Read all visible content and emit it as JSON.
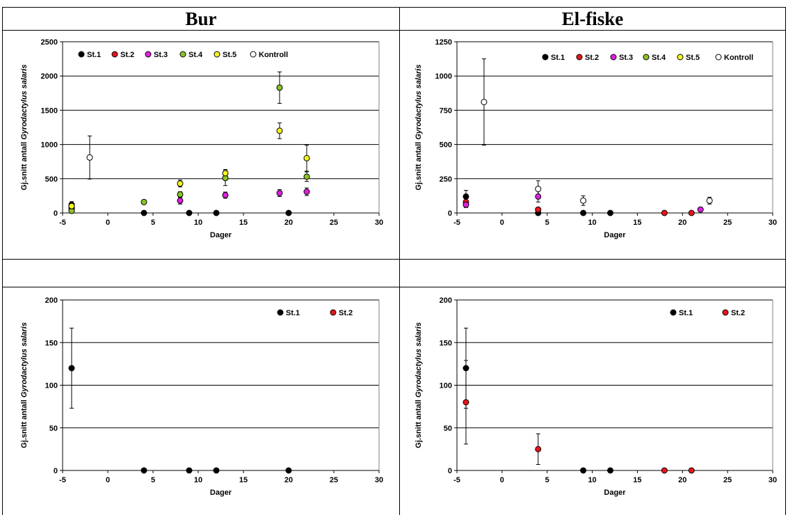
{
  "headers": {
    "left": "Bur",
    "right": "El-fiske"
  },
  "colors": {
    "St.1": "#000000",
    "St.2": "#e8141b",
    "St.3": "#e020e0",
    "St.4": "#8ac424",
    "St.5": "#f5f51e",
    "Kontroll": "#ffffff"
  },
  "chart_data": [
    {
      "type": "scatter",
      "panel": "top-left",
      "xlabel": "Dager",
      "ylabel_prefix": "Gj.snitt antall ",
      "ylabel_italic": "Gyrodactylus salaris",
      "xlim": [
        -5,
        30
      ],
      "ylim": [
        0,
        2500
      ],
      "xticks": [
        -5,
        0,
        5,
        10,
        15,
        20,
        25,
        30
      ],
      "yticks": [
        0,
        500,
        1000,
        1500,
        2000,
        2500
      ],
      "gridlines": true,
      "legend_position": "top",
      "series": [
        {
          "name": "St.1",
          "points": [
            {
              "x": -4,
              "y": 120,
              "err": 45
            },
            {
              "x": 4,
              "y": 0
            },
            {
              "x": 9,
              "y": 0
            },
            {
              "x": 12,
              "y": 0
            },
            {
              "x": 20,
              "y": 0
            }
          ]
        },
        {
          "name": "St.2",
          "points": [
            {
              "x": -4,
              "y": 80,
              "err": 40
            }
          ]
        },
        {
          "name": "St.3",
          "points": [
            {
              "x": -4,
              "y": 60,
              "err": 30
            },
            {
              "x": 8,
              "y": 180,
              "err": 50
            },
            {
              "x": 13,
              "y": 260,
              "err": 45
            },
            {
              "x": 19,
              "y": 290,
              "err": 50
            },
            {
              "x": 22,
              "y": 310,
              "err": 55
            }
          ]
        },
        {
          "name": "St.4",
          "points": [
            {
              "x": -4,
              "y": 30,
              "err": 20
            },
            {
              "x": 4,
              "y": 160,
              "err": 30
            },
            {
              "x": 8,
              "y": 270,
              "err": 40
            },
            {
              "x": 13,
              "y": 510,
              "err": 110
            },
            {
              "x": 19,
              "y": 1830,
              "err": 230
            },
            {
              "x": 22,
              "y": 530,
              "err": 70
            }
          ]
        },
        {
          "name": "St.5",
          "points": [
            {
              "x": -4,
              "y": 100,
              "err": 40
            },
            {
              "x": 8,
              "y": 430,
              "err": 50
            },
            {
              "x": 13,
              "y": 580,
              "err": 55
            },
            {
              "x": 19,
              "y": 1200,
              "err": 115
            },
            {
              "x": 22,
              "y": 800,
              "err": 190
            }
          ]
        },
        {
          "name": "Kontroll",
          "points": [
            {
              "x": -2,
              "y": 810,
              "err": 315
            }
          ]
        }
      ]
    },
    {
      "type": "scatter",
      "panel": "top-right",
      "xlabel": "Dager",
      "ylabel_prefix": "Gj.snitt antall ",
      "ylabel_italic": "Gyrodactylus salaris",
      "xlim": [
        -5,
        30
      ],
      "ylim": [
        0,
        1250
      ],
      "xticks": [
        -5,
        0,
        5,
        10,
        15,
        20,
        25,
        30
      ],
      "yticks": [
        0,
        250,
        500,
        750,
        1000,
        1250
      ],
      "gridlines": true,
      "legend_position": "top",
      "series": [
        {
          "name": "St.1",
          "points": [
            {
              "x": -4,
              "y": 120,
              "err": 45
            },
            {
              "x": 4,
              "y": 0
            },
            {
              "x": 9,
              "y": 0
            },
            {
              "x": 12,
              "y": 0
            }
          ]
        },
        {
          "name": "St.2",
          "points": [
            {
              "x": -4,
              "y": 80,
              "err": 40
            },
            {
              "x": 4,
              "y": 25,
              "err": 15
            },
            {
              "x": 18,
              "y": 0
            },
            {
              "x": 21,
              "y": 0
            }
          ]
        },
        {
          "name": "St.3",
          "points": [
            {
              "x": -4,
              "y": 60,
              "err": 20
            },
            {
              "x": 4,
              "y": 120,
              "err": 40
            },
            {
              "x": 22,
              "y": 25,
              "err": 10
            }
          ]
        },
        {
          "name": "St.4",
          "points": []
        },
        {
          "name": "St.5",
          "points": []
        },
        {
          "name": "Kontroll",
          "points": [
            {
              "x": -2,
              "y": 810,
              "err": 315
            },
            {
              "x": 4,
              "y": 175,
              "err": 60
            },
            {
              "x": 9,
              "y": 90,
              "err": 35
            },
            {
              "x": 23,
              "y": 90,
              "err": 25
            }
          ]
        }
      ]
    },
    {
      "type": "scatter",
      "panel": "bottom-left",
      "xlabel": "Dager",
      "ylabel_prefix": "Gj.snitt antall ",
      "ylabel_italic": "Gyrodactylus salaris",
      "xlim": [
        -5,
        30
      ],
      "ylim": [
        0,
        200
      ],
      "xticks": [
        -5,
        0,
        5,
        10,
        15,
        20,
        25,
        30
      ],
      "yticks": [
        0,
        50,
        100,
        150,
        200
      ],
      "gridlines": true,
      "legend_position": "top-right",
      "series": [
        {
          "name": "St.1",
          "points": [
            {
              "x": -4,
              "y": 120,
              "err": 47
            },
            {
              "x": 4,
              "y": 0
            },
            {
              "x": 9,
              "y": 0
            },
            {
              "x": 12,
              "y": 0
            },
            {
              "x": 20,
              "y": 0
            }
          ]
        },
        {
          "name": "St.2",
          "points": []
        }
      ]
    },
    {
      "type": "scatter",
      "panel": "bottom-right",
      "xlabel": "Dager",
      "ylabel_prefix": "Gj.snitt antall ",
      "ylabel_italic": "Gyrodactylus salaris",
      "xlim": [
        -5,
        30
      ],
      "ylim": [
        0,
        200
      ],
      "xticks": [
        -5,
        0,
        5,
        10,
        15,
        20,
        25,
        30
      ],
      "yticks": [
        0,
        50,
        100,
        150,
        200
      ],
      "gridlines": true,
      "legend_position": "top-right",
      "series": [
        {
          "name": "St.1",
          "points": [
            {
              "x": -4,
              "y": 120,
              "err": 47
            },
            {
              "x": 9,
              "y": 0
            },
            {
              "x": 12,
              "y": 0
            }
          ]
        },
        {
          "name": "St.2",
          "points": [
            {
              "x": -4,
              "y": 80,
              "err": 49
            },
            {
              "x": 4,
              "y": 25,
              "err": 18
            },
            {
              "x": 18,
              "y": 0
            },
            {
              "x": 21,
              "y": 0
            }
          ]
        }
      ]
    }
  ]
}
